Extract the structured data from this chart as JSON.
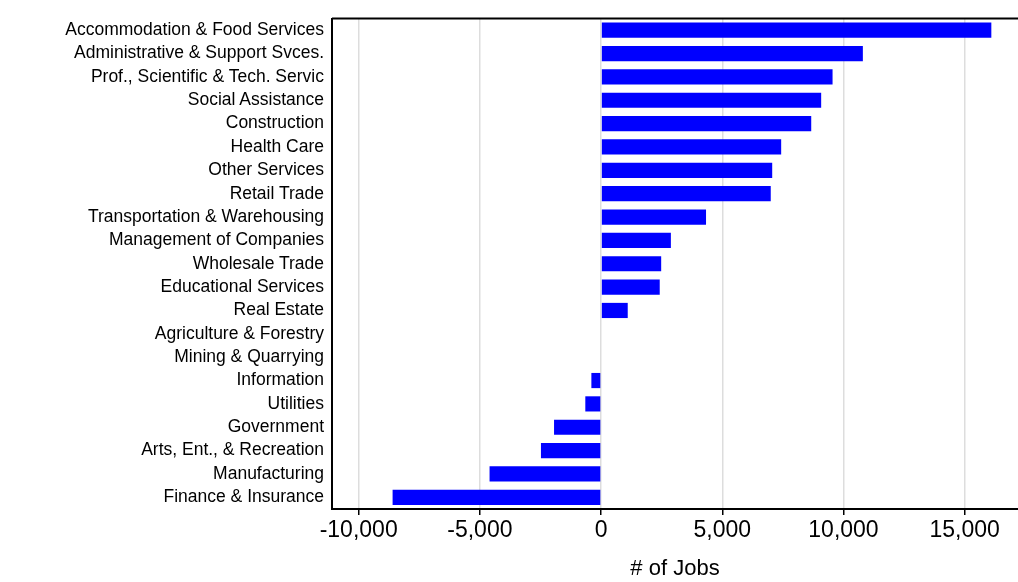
{
  "chart_data": {
    "type": "bar",
    "orientation": "horizontal",
    "xlabel": "# of Jobs",
    "categories": [
      "Accommodation & Food Services",
      "Administrative & Support Svces.",
      "Prof., Scientific & Tech. Servic",
      "Social Assistance",
      "Construction",
      "Health Care",
      "Other Services",
      "Retail Trade",
      "Transportation & Warehousing",
      "Management of Companies",
      "Wholesale Trade",
      "Educational Services",
      "Real Estate",
      "Agriculture & Forestry",
      "Mining & Quarrying",
      "Information",
      "Utilities",
      "Government",
      "Arts, Ent., & Recreation",
      "Manufacturing",
      "Finance & Insurance"
    ],
    "values": [
      16100,
      10800,
      9550,
      9080,
      8670,
      7430,
      7060,
      7000,
      4330,
      2880,
      2480,
      2420,
      1100,
      0,
      0,
      -400,
      -650,
      -1940,
      -2480,
      -4600,
      -8600
    ],
    "color": "#0000ff",
    "xlim": [
      -11100,
      17200
    ],
    "xticks": [
      {
        "value": -10000,
        "label": "-10,000"
      },
      {
        "value": -5000,
        "label": "-5,000"
      },
      0,
      {
        "value": 5000,
        "label": "5,000"
      },
      {
        "value": 10000,
        "label": "10,000"
      },
      {
        "value": 15000,
        "label": "15,000"
      }
    ],
    "grid": "x",
    "legend": false
  }
}
